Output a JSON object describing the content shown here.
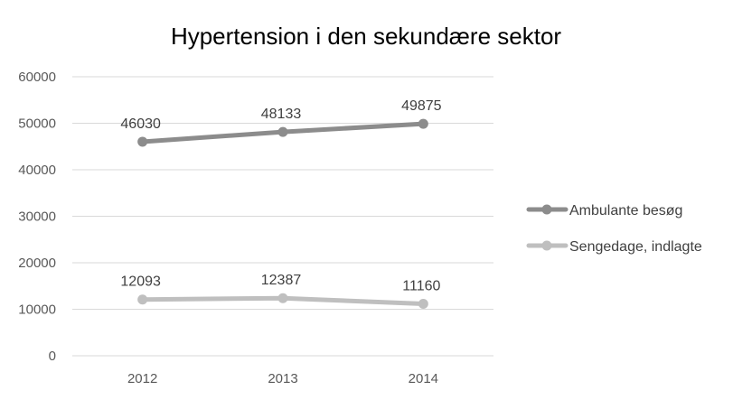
{
  "chart_data": {
    "type": "line",
    "title": "Hypertension i den sekundære sektor",
    "xlabel": "",
    "ylabel": "",
    "categories": [
      "2012",
      "2013",
      "2014"
    ],
    "ylim": [
      0,
      60000
    ],
    "yticks": [
      0,
      10000,
      20000,
      30000,
      40000,
      50000,
      60000
    ],
    "grid": true,
    "legend": "right",
    "series": [
      {
        "name": "Ambulante besøg",
        "values": [
          46030,
          48133,
          49875
        ],
        "color": "#8c8c8c"
      },
      {
        "name": "Sengedage, indlagte",
        "values": [
          12093,
          12387,
          11160
        ],
        "color": "#bfbfbf"
      }
    ]
  }
}
